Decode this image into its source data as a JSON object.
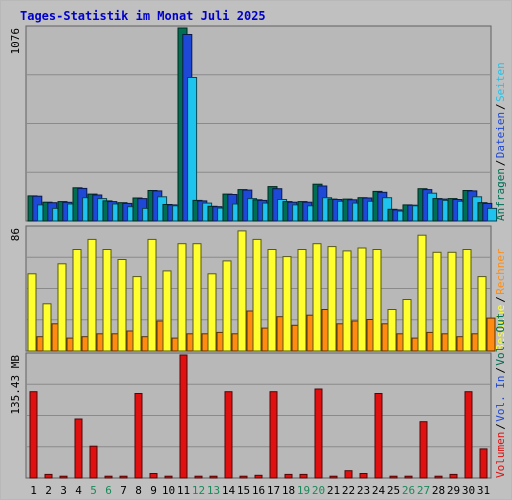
{
  "colors": {
    "background": "#c0c0c0",
    "panel": "#b8b8b8",
    "grid": "#8a8a8a",
    "title": "#0000cc",
    "visits": "#006e53",
    "visits_light": "#19a27c",
    "files": "#1e48d6",
    "pages": "#1fc4ee",
    "visitors": "#ffff30",
    "hosts": "#ff8c10",
    "volume": "#e01010",
    "weekend": "#1a8a5a",
    "weekday": "#000000"
  },
  "chart_data": {
    "type": "bar",
    "title": "Tages-Statistik im Monat Juli 2025",
    "categories": [
      "1",
      "2",
      "3",
      "4",
      "5",
      "6",
      "7",
      "8",
      "9",
      "10",
      "11",
      "12",
      "13",
      "14",
      "15",
      "16",
      "17",
      "18",
      "19",
      "20",
      "21",
      "22",
      "23",
      "24",
      "25",
      "26",
      "27",
      "28",
      "29",
      "30",
      "31"
    ],
    "weekend_days": [
      "5",
      "6",
      "12",
      "13",
      "19",
      "20",
      "26",
      "27"
    ],
    "panels": [
      {
        "ylabel": "1076",
        "ymax": 1076,
        "series": [
          {
            "name": "Anfragen",
            "color": "#006e53",
            "values": [
              140,
              105,
              108,
              185,
              150,
              112,
              102,
              128,
              170,
              92,
              1076,
              115,
              82,
              150,
              175,
              118,
              192,
              108,
              108,
              205,
              122,
              122,
              130,
              165,
              65,
              90,
              180,
              125,
              125,
              170,
              102
            ]
          },
          {
            "name": "Dateien",
            "color": "#1e48d6",
            "values": [
              138,
              102,
              104,
              182,
              145,
              108,
              98,
              125,
              168,
              90,
              1040,
              112,
              80,
              148,
              172,
              115,
              180,
              105,
              105,
              195,
              120,
              118,
              128,
              160,
              62,
              88,
              175,
              122,
              120,
              168,
              98
            ]
          },
          {
            "name": "Seiten",
            "color": "#1fc4ee",
            "values": [
              90,
              70,
              95,
              130,
              125,
              95,
              80,
              70,
              135,
              85,
              800,
              100,
              72,
              95,
              125,
              100,
              120,
              90,
              85,
              130,
              110,
              100,
              110,
              130,
              55,
              85,
              155,
              115,
              110,
              135,
              70
            ]
          }
        ],
        "side_labels": [
          {
            "text": "Anfragen",
            "color": "#006e53"
          },
          {
            "text": "Dateien",
            "color": "#1e48d6"
          },
          {
            "text": "Seiten",
            "color": "#1fc4ee"
          }
        ]
      },
      {
        "ylabel": "86",
        "ymax": 86,
        "series": [
          {
            "name": "Besuche",
            "color": "#ffff30",
            "values": [
              54,
              33,
              61,
              71,
              78,
              71,
              64,
              52,
              78,
              56,
              75,
              75,
              54,
              63,
              84,
              78,
              71,
              66,
              71,
              75,
              73,
              70,
              72,
              71,
              29,
              36,
              81,
              69,
              69,
              71,
              52
            ]
          },
          {
            "name": "Rechner",
            "color": "#ff8c10",
            "values": [
              10,
              19,
              9,
              10,
              12,
              12,
              14,
              10,
              21,
              9,
              12,
              12,
              13,
              12,
              28,
              16,
              24,
              18,
              25,
              29,
              19,
              21,
              22,
              19,
              12,
              9,
              13,
              12,
              10,
              12,
              23
            ]
          }
        ],
        "side_labels": [
          {
            "text": "Besuche",
            "color": "#ffff30"
          },
          {
            "text": "Rechner",
            "color": "#ff8c10"
          }
        ]
      },
      {
        "ylabel": "135.43 MB",
        "ymax": 135.43,
        "series": [
          {
            "name": "Volumen",
            "color": "#e01010",
            "values": [
              95,
              4,
              2,
              65,
              35,
              2,
              2,
              93,
              5,
              2,
              135.43,
              2,
              2,
              95,
              2,
              3,
              95,
              4,
              4,
              98,
              2,
              8,
              5,
              93,
              2,
              2,
              62,
              2,
              4,
              95,
              32
            ]
          }
        ],
        "side_labels": [
          {
            "text": "Volumen",
            "color": "#e01010"
          },
          {
            "text": "Vol. In",
            "color": "#1e48d6"
          },
          {
            "text": "Vol. Out",
            "color": "#006e53"
          }
        ]
      }
    ]
  }
}
